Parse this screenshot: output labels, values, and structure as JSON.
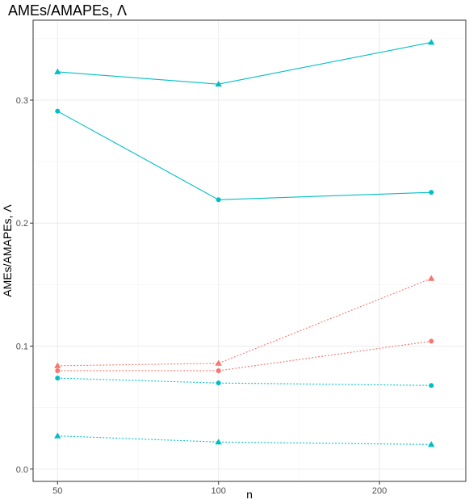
{
  "chart_data": {
    "type": "line",
    "title": "AMEs/AMAPEs, Λ",
    "xlabel": "n",
    "ylabel": "AMEs/AMAPEs, Λ",
    "x_scale": "log",
    "xlim": [
      45,
      290
    ],
    "ylim": [
      -0.01,
      0.365
    ],
    "x_ticks": [
      50,
      100,
      200
    ],
    "x_tick_labels": [
      "50",
      "100",
      "200"
    ],
    "y_ticks": [
      0.0,
      0.1,
      0.2,
      0.3
    ],
    "y_tick_labels": [
      "0.0",
      "0.1",
      "0.2",
      "0.3"
    ],
    "grid": true,
    "legend": "none",
    "x": [
      50,
      100,
      250
    ],
    "series": [
      {
        "color": "#00BFC4",
        "linestyle": "solid",
        "marker": "triangle",
        "values": [
          0.323,
          0.313,
          0.347
        ]
      },
      {
        "color": "#00BFC4",
        "linestyle": "solid",
        "marker": "circle",
        "values": [
          0.291,
          0.219,
          0.225
        ]
      },
      {
        "color": "#F8766D",
        "linestyle": "dotted",
        "marker": "triangle",
        "values": [
          0.084,
          0.086,
          0.155
        ]
      },
      {
        "color": "#F8766D",
        "linestyle": "dotted",
        "marker": "circle",
        "values": [
          0.08,
          0.08,
          0.104
        ]
      },
      {
        "color": "#00BFC4",
        "linestyle": "dotted",
        "marker": "circle",
        "values": [
          0.074,
          0.07,
          0.068
        ]
      },
      {
        "color": "#00BFC4",
        "linestyle": "dotted",
        "marker": "triangle",
        "values": [
          0.027,
          0.022,
          0.02
        ]
      }
    ]
  }
}
